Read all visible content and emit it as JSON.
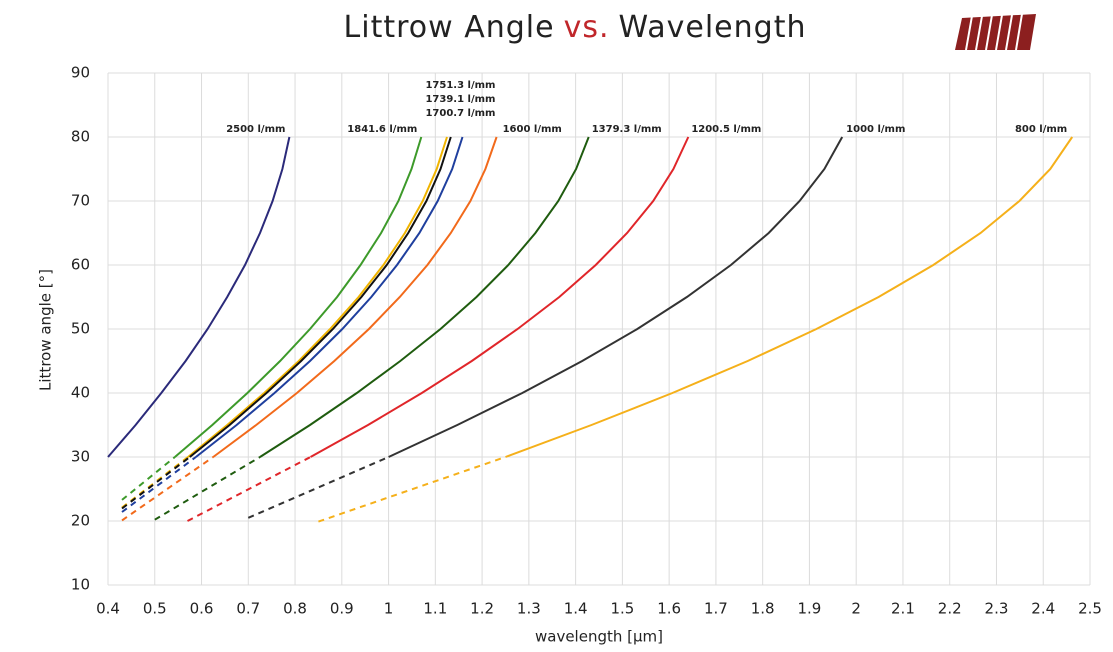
{
  "chart_data": {
    "type": "line",
    "title": [
      "Littrow Angle",
      "vs.",
      "Wavelength"
    ],
    "x_label": "wavelength [µm]",
    "y_label": "Littrow angle [°]",
    "xlim": [
      0.4,
      2.5
    ],
    "ylim": [
      10,
      90
    ],
    "xticks": [
      0.4,
      0.5,
      0.6,
      0.7,
      0.8,
      0.9,
      1,
      1.1,
      1.2,
      1.3,
      1.4,
      1.5,
      1.6,
      1.7,
      1.8,
      1.9,
      2,
      2.1,
      2.2,
      2.3,
      2.4,
      2.5
    ],
    "yticks": [
      10,
      20,
      30,
      40,
      50,
      60,
      70,
      80,
      90
    ],
    "grid": true,
    "series": [
      {
        "name": "2500 l/mm",
        "color": "#2b2a7a",
        "x": [
          0.4,
          0.459,
          0.514,
          0.566,
          0.613,
          0.655,
          0.693,
          0.725,
          0.752,
          0.773,
          0.788
        ],
        "values": [
          30,
          35,
          40,
          45,
          50,
          55,
          60,
          65,
          70,
          75,
          80
        ]
      },
      {
        "name": "1841.6 l/mm",
        "color": "#3d9a2a",
        "x": [
          0.543,
          0.623,
          0.698,
          0.768,
          0.832,
          0.89,
          0.94,
          0.984,
          1.021,
          1.049,
          1.07
        ],
        "values": [
          30,
          35,
          40,
          45,
          50,
          55,
          60,
          65,
          70,
          75,
          80
        ],
        "extrapolated": {
          "x": [
            0.43,
            0.543
          ],
          "values": [
            23.3,
            30
          ]
        }
      },
      {
        "name": "1751.3 l/mm",
        "color": "#f0b400",
        "x": [
          0.571,
          0.655,
          0.734,
          0.808,
          0.875,
          0.936,
          0.989,
          1.035,
          1.073,
          1.103,
          1.125
        ],
        "values": [
          30,
          35,
          40,
          45,
          50,
          55,
          60,
          65,
          70,
          75,
          80
        ],
        "extrapolated": {
          "x": [
            0.43,
            0.571
          ],
          "values": [
            22.1,
            30
          ]
        }
      },
      {
        "name": "1739.1 l/mm",
        "color": "#111111",
        "x": [
          0.575,
          0.66,
          0.739,
          0.813,
          0.881,
          0.942,
          0.996,
          1.042,
          1.081,
          1.111,
          1.133
        ],
        "values": [
          30,
          35,
          40,
          45,
          50,
          55,
          60,
          65,
          70,
          75,
          80
        ],
        "extrapolated": {
          "x": [
            0.43,
            0.575
          ],
          "values": [
            21.95,
            30
          ]
        }
      },
      {
        "name": "1700.7 l/mm",
        "color": "#1f3f9e",
        "x": [
          0.588,
          0.675,
          0.756,
          0.832,
          0.901,
          0.963,
          1.018,
          1.066,
          1.105,
          1.136,
          1.158
        ],
        "values": [
          30,
          35,
          40,
          45,
          50,
          55,
          60,
          65,
          70,
          75,
          80
        ],
        "extrapolated": {
          "x": [
            0.43,
            0.588
          ],
          "values": [
            21.4,
            30
          ]
        }
      },
      {
        "name": "1600 l/mm",
        "color": "#f26a1b",
        "x": [
          0.625,
          0.717,
          0.804,
          0.884,
          0.958,
          1.024,
          1.083,
          1.133,
          1.175,
          1.207,
          1.231
        ],
        "values": [
          30,
          35,
          40,
          45,
          50,
          55,
          60,
          65,
          70,
          75,
          80
        ],
        "extrapolated": {
          "x": [
            0.43,
            0.625
          ],
          "values": [
            20.1,
            30
          ]
        }
      },
      {
        "name": "1379.3 l/mm",
        "color": "#1f5c0f",
        "x": [
          0.725,
          0.832,
          0.932,
          1.025,
          1.111,
          1.188,
          1.256,
          1.314,
          1.363,
          1.401,
          1.428
        ],
        "values": [
          30,
          35,
          40,
          45,
          50,
          55,
          60,
          65,
          70,
          75,
          80
        ],
        "extrapolated": {
          "x": [
            0.5,
            0.725
          ],
          "values": [
            20.2,
            30
          ]
        }
      },
      {
        "name": "1200.5 l/mm",
        "color": "#e0262a",
        "x": [
          0.833,
          0.956,
          1.071,
          1.178,
          1.276,
          1.365,
          1.443,
          1.51,
          1.566,
          1.609,
          1.641
        ],
        "values": [
          30,
          35,
          40,
          45,
          50,
          55,
          60,
          65,
          70,
          75,
          80
        ],
        "extrapolated": {
          "x": [
            0.57,
            0.833
          ],
          "values": [
            20,
            30
          ]
        }
      },
      {
        "name": "1000 l/mm",
        "color": "#333333",
        "x": [
          1,
          1.147,
          1.286,
          1.414,
          1.532,
          1.638,
          1.732,
          1.813,
          1.879,
          1.932,
          1.97
        ],
        "values": [
          30,
          35,
          40,
          45,
          50,
          55,
          60,
          65,
          70,
          75,
          80
        ],
        "extrapolated": {
          "x": [
            0.7,
            1
          ],
          "values": [
            20.5,
            30
          ]
        }
      },
      {
        "name": "800 l/mm",
        "color": "#f5b01a",
        "x": [
          1.25,
          1.434,
          1.607,
          1.768,
          1.915,
          2.048,
          2.165,
          2.266,
          2.349,
          2.415,
          2.462
        ],
        "values": [
          30,
          35,
          40,
          45,
          50,
          55,
          60,
          65,
          70,
          75,
          80
        ],
        "extrapolated": {
          "x": [
            0.85,
            1.25
          ],
          "values": [
            19.9,
            30
          ]
        }
      }
    ]
  }
}
